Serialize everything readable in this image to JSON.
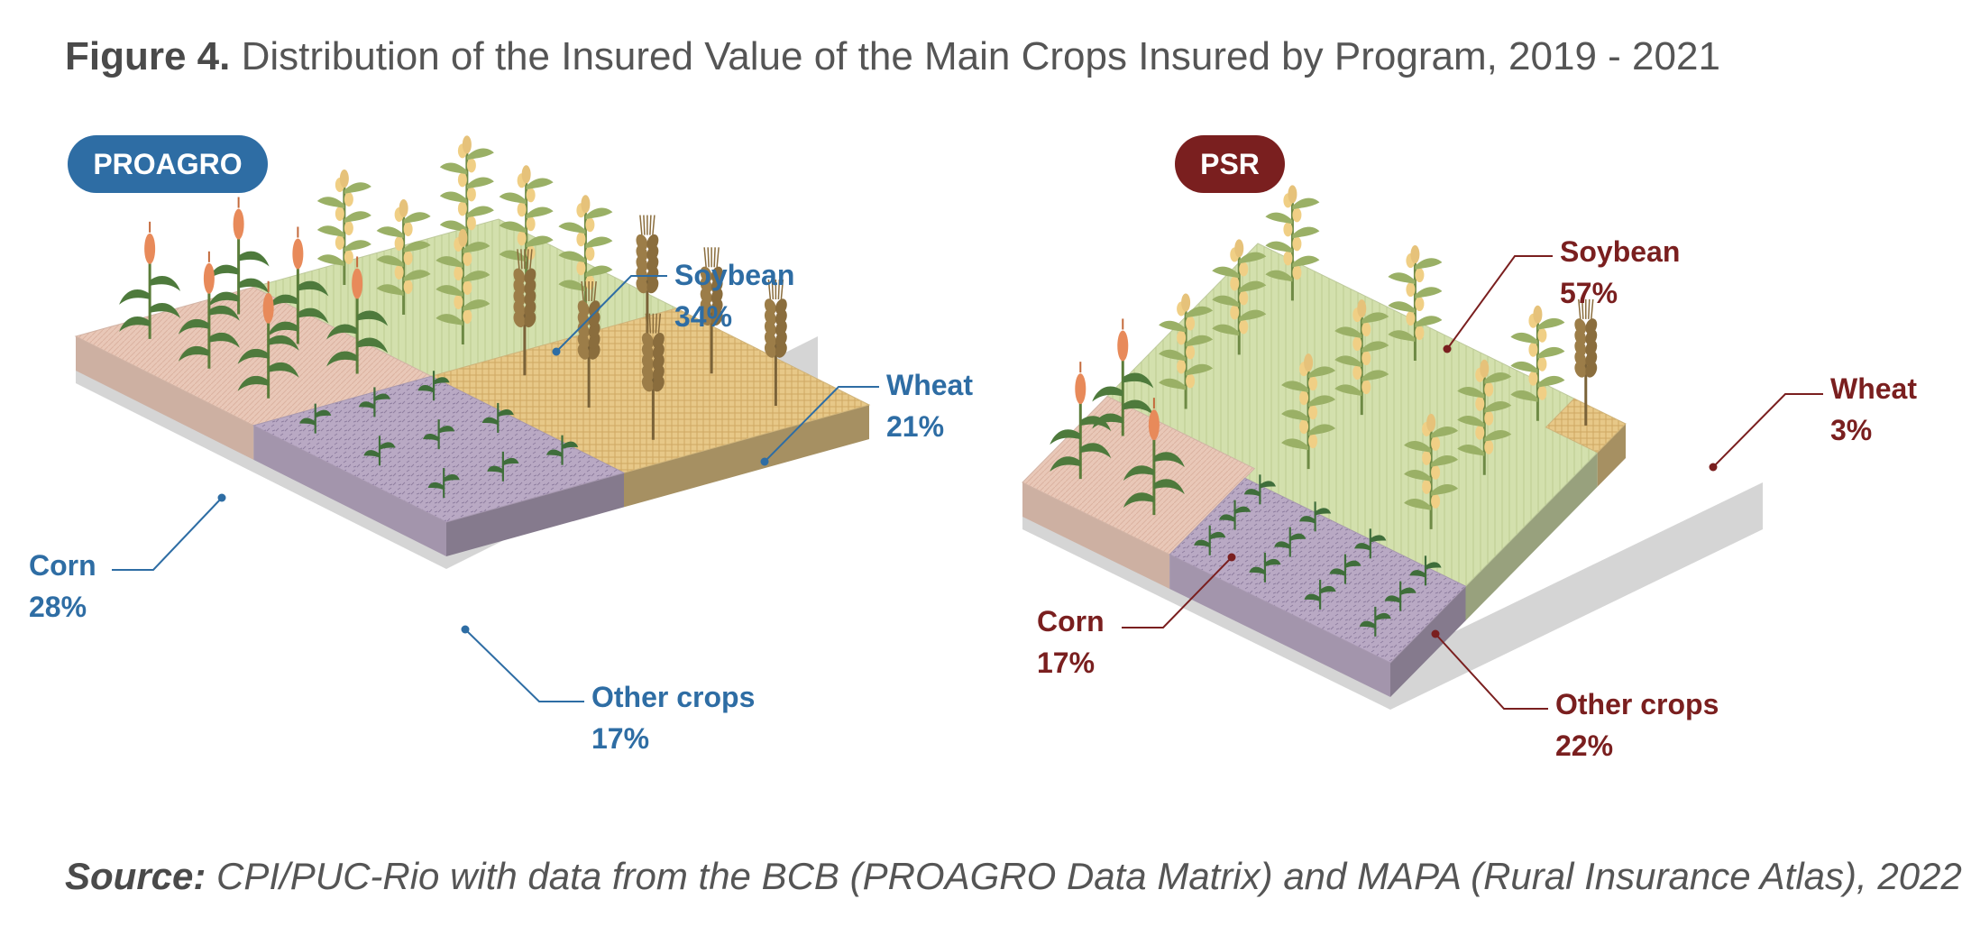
{
  "figure": {
    "title_lead": "Figure 4.",
    "title_text": " Distribution of the Insured Value of the Main Crops Insured by Program, 2019 - 2021",
    "source_lead": "Source:",
    "source_text": " CPI/PUC-Rio with data from the BCB (PROAGRO Data Matrix) and MAPA (Rural Insurance Atlas), 2022"
  },
  "colors": {
    "proagro": "#2e6da4",
    "psr": "#7a1f1f",
    "corn": "#e9c8b8",
    "soybean": "#d3e0ad",
    "wheat": "#e7c888",
    "other": "#b9a9c4"
  },
  "icons": [
    "corn-plant-icon",
    "soybean-plant-icon",
    "wheat-plant-icon",
    "seedling-icon"
  ],
  "chart_data": [
    {
      "type": "treemap",
      "title": "PROAGRO",
      "unit": "%",
      "categories": [
        "Corn",
        "Soybean",
        "Wheat",
        "Other crops"
      ],
      "values": [
        28,
        34,
        21,
        17
      ],
      "labels": [
        "28%",
        "34%",
        "21%",
        "17%"
      ]
    },
    {
      "type": "treemap",
      "title": "PSR",
      "unit": "%",
      "categories": [
        "Corn",
        "Soybean",
        "Wheat",
        "Other crops"
      ],
      "values": [
        17,
        57,
        3,
        22
      ],
      "labels": [
        "17%",
        "57%",
        "3%",
        "22%"
      ]
    }
  ]
}
